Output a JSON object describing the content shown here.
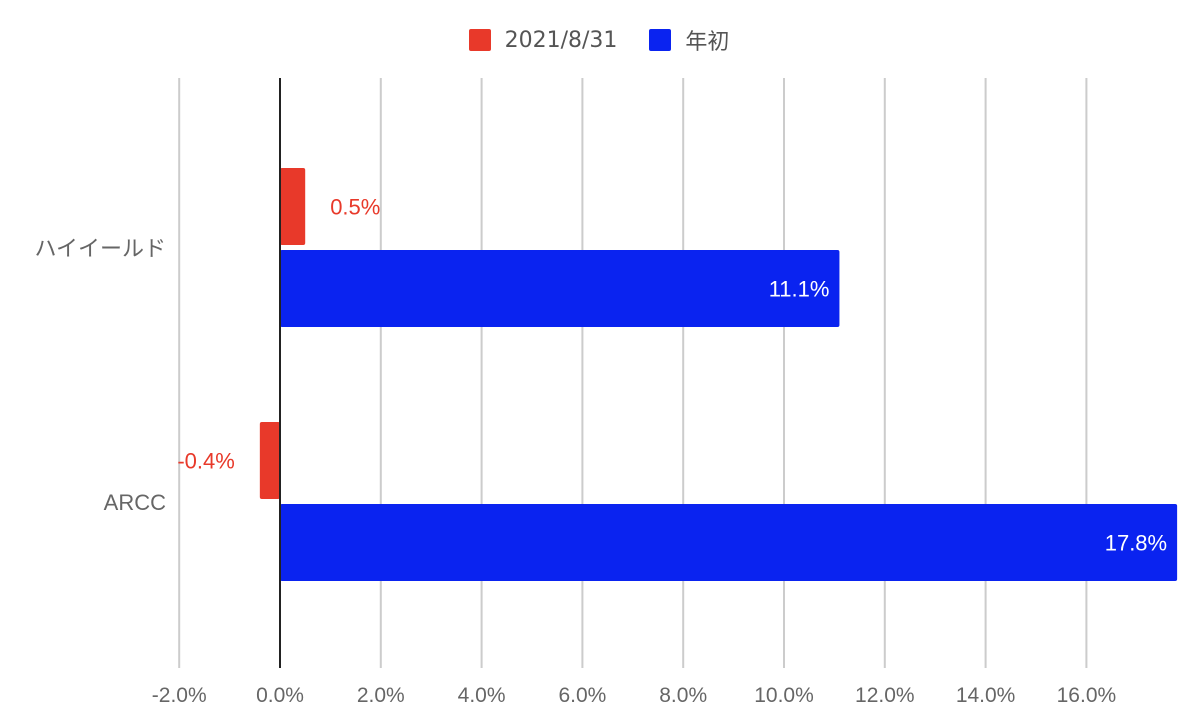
{
  "colors": {
    "series_2021": "#e8392a",
    "series_ytd": "#0a23f0",
    "grid": "#cccccc",
    "axis": "#222222",
    "tick_text": "#666666",
    "label_on_bar": "#ffffff"
  },
  "chart_data": {
    "type": "bar",
    "orientation": "horizontal",
    "categories": [
      "ハイイールド",
      "ARCC"
    ],
    "series": [
      {
        "name": "2021/8/31",
        "values": [
          0.5,
          -0.4
        ],
        "labels": [
          "0.5%",
          "-0.4%"
        ]
      },
      {
        "name": "年初",
        "values": [
          11.1,
          17.8
        ],
        "labels": [
          "11.1%",
          "17.8%"
        ]
      }
    ],
    "xlim": [
      -2,
      17.8
    ],
    "x_ticks": [
      -2,
      0,
      2,
      4,
      6,
      8,
      10,
      12,
      14,
      16
    ],
    "x_tick_labels": [
      "-2.0%",
      "0.0%",
      "2.0%",
      "4.0%",
      "6.0%",
      "8.0%",
      "10.0%",
      "12.0%",
      "14.0%",
      "16.0%"
    ],
    "grid": true,
    "legend_position": "top-center"
  }
}
